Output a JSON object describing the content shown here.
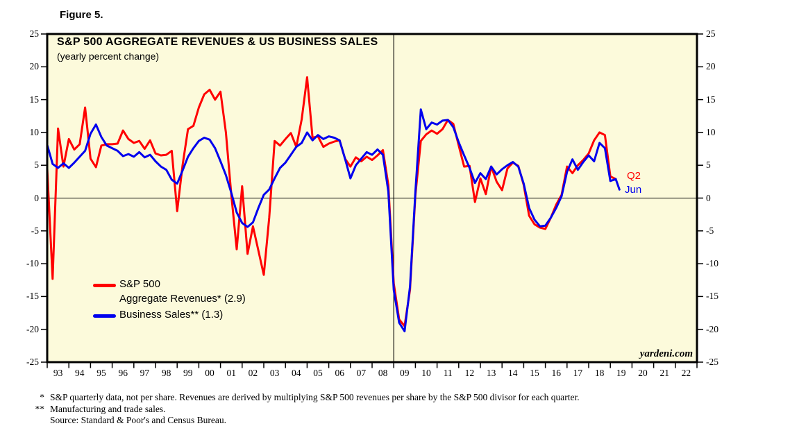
{
  "figure_label": "Figure 5.",
  "watermark": "yardeni.com",
  "footnotes": [
    {
      "marker": "*",
      "text": "S&P quarterly data, not per share. Revenues are derived by multiplying S&P 500 revenues per share by the S&P 500 divisor for each quarter."
    },
    {
      "marker": "**",
      "text": "Manufacturing and trade sales."
    },
    {
      "marker": "",
      "text": "Source: Standard & Poor's and Census Bureau."
    }
  ],
  "chart_data": {
    "type": "line",
    "title": "S&P 500 AGGREGATE REVENUES & US BUSINESS SALES",
    "subtitle": "(yearly percent change)",
    "background_color": "#FCFADB",
    "border_color": "#000000",
    "grid": false,
    "zero_line": true,
    "vertical_reference_line_x": 2009,
    "x_axis": {
      "range": [
        1993,
        2023
      ],
      "tick_labels": [
        "93",
        "94",
        "95",
        "96",
        "97",
        "98",
        "99",
        "00",
        "01",
        "02",
        "03",
        "04",
        "05",
        "06",
        "07",
        "08",
        "09",
        "10",
        "11",
        "12",
        "13",
        "14",
        "15",
        "16",
        "17",
        "18",
        "19",
        "20",
        "21",
        "22"
      ]
    },
    "y_axis": {
      "range": [
        -25,
        25
      ],
      "ticks": [
        25,
        20,
        15,
        10,
        5,
        0,
        -5,
        -10,
        -15,
        -20,
        -25
      ],
      "sides": "both"
    },
    "legend": {
      "position": "inside-lower-left",
      "entries": [
        {
          "color": "#FF0000",
          "label_lines": [
            "S&P 500",
            "Aggregate Revenues* (2.9)"
          ]
        },
        {
          "color": "#0000EE",
          "label_lines": [
            "Business Sales** (1.3)"
          ]
        }
      ]
    },
    "annotations": [
      {
        "text": "Q2",
        "color": "#FF0000",
        "x": 2019.75,
        "y": 3.4
      },
      {
        "text": "Jun",
        "color": "#0000EE",
        "x": 2019.68,
        "y": 1.3
      }
    ],
    "series": [
      {
        "name": "S&P 500 Aggregate Revenues* (2.9)",
        "color": "#FF0000",
        "latest_value": 2.9,
        "latest_label": "Q2",
        "points": [
          [
            1993.0,
            4.5
          ],
          [
            1993.25,
            -12.3
          ],
          [
            1993.5,
            10.6
          ],
          [
            1993.75,
            4.8
          ],
          [
            1994.0,
            9.0
          ],
          [
            1994.25,
            7.4
          ],
          [
            1994.5,
            8.2
          ],
          [
            1994.75,
            13.8
          ],
          [
            1995.0,
            6.0
          ],
          [
            1995.25,
            4.7
          ],
          [
            1995.5,
            8.0
          ],
          [
            1995.75,
            8.2
          ],
          [
            1996.0,
            8.2
          ],
          [
            1996.25,
            8.3
          ],
          [
            1996.5,
            10.3
          ],
          [
            1996.75,
            9.0
          ],
          [
            1997.0,
            8.4
          ],
          [
            1997.25,
            8.7
          ],
          [
            1997.5,
            7.5
          ],
          [
            1997.75,
            8.8
          ],
          [
            1998.0,
            6.8
          ],
          [
            1998.25,
            6.5
          ],
          [
            1998.5,
            6.6
          ],
          [
            1998.75,
            7.2
          ],
          [
            1999.0,
            -2.0
          ],
          [
            1999.25,
            5.0
          ],
          [
            1999.5,
            10.5
          ],
          [
            1999.75,
            11.0
          ],
          [
            2000.0,
            13.8
          ],
          [
            2000.25,
            15.8
          ],
          [
            2000.5,
            16.5
          ],
          [
            2000.75,
            15.0
          ],
          [
            2001.0,
            16.2
          ],
          [
            2001.25,
            10.0
          ],
          [
            2001.5,
            0.5
          ],
          [
            2001.75,
            -7.8
          ],
          [
            2002.0,
            1.8
          ],
          [
            2002.25,
            -8.5
          ],
          [
            2002.5,
            -4.3
          ],
          [
            2002.75,
            -8.0
          ],
          [
            2003.0,
            -11.7
          ],
          [
            2003.25,
            -3.0
          ],
          [
            2003.5,
            8.7
          ],
          [
            2003.75,
            8.0
          ],
          [
            2004.0,
            9.0
          ],
          [
            2004.25,
            9.9
          ],
          [
            2004.5,
            7.8
          ],
          [
            2004.75,
            12.0
          ],
          [
            2005.0,
            18.4
          ],
          [
            2005.25,
            9.2
          ],
          [
            2005.5,
            9.4
          ],
          [
            2005.75,
            7.8
          ],
          [
            2006.0,
            8.3
          ],
          [
            2006.25,
            8.6
          ],
          [
            2006.5,
            8.8
          ],
          [
            2006.75,
            6.0
          ],
          [
            2007.0,
            4.8
          ],
          [
            2007.25,
            6.2
          ],
          [
            2007.5,
            5.6
          ],
          [
            2007.75,
            6.3
          ],
          [
            2008.0,
            5.8
          ],
          [
            2008.25,
            6.5
          ],
          [
            2008.5,
            7.3
          ],
          [
            2008.75,
            2.0
          ],
          [
            2009.0,
            -13.0
          ],
          [
            2009.25,
            -18.5
          ],
          [
            2009.5,
            -19.5
          ],
          [
            2009.75,
            -14.0
          ],
          [
            2010.0,
            0.5
          ],
          [
            2010.25,
            8.7
          ],
          [
            2010.5,
            9.7
          ],
          [
            2010.75,
            10.3
          ],
          [
            2011.0,
            9.8
          ],
          [
            2011.25,
            10.5
          ],
          [
            2011.5,
            11.9
          ],
          [
            2011.75,
            11.3
          ],
          [
            2012.0,
            8.0
          ],
          [
            2012.25,
            4.8
          ],
          [
            2012.5,
            4.9
          ],
          [
            2012.75,
            -0.6
          ],
          [
            2013.0,
            3.0
          ],
          [
            2013.25,
            0.6
          ],
          [
            2013.5,
            4.8
          ],
          [
            2013.75,
            2.5
          ],
          [
            2014.0,
            1.2
          ],
          [
            2014.25,
            4.5
          ],
          [
            2014.5,
            5.4
          ],
          [
            2014.75,
            4.9
          ],
          [
            2015.0,
            2.0
          ],
          [
            2015.25,
            -2.7
          ],
          [
            2015.5,
            -4.0
          ],
          [
            2015.75,
            -4.5
          ],
          [
            2016.0,
            -4.7
          ],
          [
            2016.25,
            -3.0
          ],
          [
            2016.5,
            -1.0
          ],
          [
            2016.75,
            0.5
          ],
          [
            2017.0,
            4.8
          ],
          [
            2017.25,
            3.8
          ],
          [
            2017.5,
            5.0
          ],
          [
            2017.75,
            5.8
          ],
          [
            2018.0,
            6.8
          ],
          [
            2018.25,
            8.8
          ],
          [
            2018.5,
            10.0
          ],
          [
            2018.75,
            9.6
          ],
          [
            2019.0,
            3.3
          ],
          [
            2019.25,
            2.9
          ]
        ]
      },
      {
        "name": "Business Sales** (1.3)",
        "color": "#0000EE",
        "latest_value": 1.3,
        "latest_label": "Jun",
        "points": [
          [
            1993.0,
            8.1
          ],
          [
            1993.25,
            5.2
          ],
          [
            1993.5,
            4.6
          ],
          [
            1993.75,
            5.3
          ],
          [
            1994.0,
            4.6
          ],
          [
            1994.25,
            5.4
          ],
          [
            1994.5,
            6.3
          ],
          [
            1994.75,
            7.2
          ],
          [
            1995.0,
            9.8
          ],
          [
            1995.25,
            11.2
          ],
          [
            1995.5,
            9.3
          ],
          [
            1995.75,
            8.0
          ],
          [
            1996.0,
            7.6
          ],
          [
            1996.25,
            7.2
          ],
          [
            1996.5,
            6.4
          ],
          [
            1996.75,
            6.7
          ],
          [
            1997.0,
            6.3
          ],
          [
            1997.25,
            7.0
          ],
          [
            1997.5,
            6.2
          ],
          [
            1997.75,
            6.6
          ],
          [
            1998.0,
            5.6
          ],
          [
            1998.25,
            4.8
          ],
          [
            1998.5,
            4.3
          ],
          [
            1998.75,
            2.8
          ],
          [
            1999.0,
            2.2
          ],
          [
            1999.25,
            4.2
          ],
          [
            1999.5,
            6.3
          ],
          [
            1999.75,
            7.6
          ],
          [
            2000.0,
            8.7
          ],
          [
            2000.25,
            9.2
          ],
          [
            2000.5,
            8.9
          ],
          [
            2000.75,
            7.6
          ],
          [
            2001.0,
            5.6
          ],
          [
            2001.25,
            3.5
          ],
          [
            2001.5,
            0.8
          ],
          [
            2001.75,
            -2.2
          ],
          [
            2002.0,
            -3.8
          ],
          [
            2002.25,
            -4.4
          ],
          [
            2002.5,
            -3.7
          ],
          [
            2002.75,
            -1.5
          ],
          [
            2003.0,
            0.5
          ],
          [
            2003.25,
            1.3
          ],
          [
            2003.5,
            3.0
          ],
          [
            2003.75,
            4.6
          ],
          [
            2004.0,
            5.4
          ],
          [
            2004.25,
            6.6
          ],
          [
            2004.5,
            7.8
          ],
          [
            2004.75,
            8.4
          ],
          [
            2005.0,
            10.0
          ],
          [
            2005.25,
            8.8
          ],
          [
            2005.5,
            9.6
          ],
          [
            2005.75,
            9.0
          ],
          [
            2006.0,
            9.4
          ],
          [
            2006.25,
            9.2
          ],
          [
            2006.5,
            8.8
          ],
          [
            2006.75,
            6.0
          ],
          [
            2007.0,
            3.0
          ],
          [
            2007.25,
            5.0
          ],
          [
            2007.5,
            6.0
          ],
          [
            2007.75,
            7.0
          ],
          [
            2008.0,
            6.6
          ],
          [
            2008.25,
            7.4
          ],
          [
            2008.5,
            6.6
          ],
          [
            2008.75,
            1.0
          ],
          [
            2009.0,
            -14.0
          ],
          [
            2009.25,
            -19.0
          ],
          [
            2009.5,
            -20.3
          ],
          [
            2009.75,
            -13.5
          ],
          [
            2010.0,
            1.0
          ],
          [
            2010.25,
            13.5
          ],
          [
            2010.5,
            10.5
          ],
          [
            2010.75,
            11.5
          ],
          [
            2011.0,
            11.2
          ],
          [
            2011.25,
            11.8
          ],
          [
            2011.5,
            11.9
          ],
          [
            2011.75,
            10.8
          ],
          [
            2012.0,
            8.5
          ],
          [
            2012.25,
            6.5
          ],
          [
            2012.5,
            4.6
          ],
          [
            2012.75,
            2.3
          ],
          [
            2013.0,
            3.8
          ],
          [
            2013.25,
            2.9
          ],
          [
            2013.5,
            4.8
          ],
          [
            2013.75,
            3.6
          ],
          [
            2014.0,
            4.4
          ],
          [
            2014.25,
            5.0
          ],
          [
            2014.5,
            5.5
          ],
          [
            2014.75,
            4.8
          ],
          [
            2015.0,
            2.2
          ],
          [
            2015.25,
            -1.5
          ],
          [
            2015.5,
            -3.3
          ],
          [
            2015.75,
            -4.3
          ],
          [
            2016.0,
            -4.2
          ],
          [
            2016.25,
            -3.0
          ],
          [
            2016.5,
            -1.5
          ],
          [
            2016.75,
            0.3
          ],
          [
            2017.0,
            4.0
          ],
          [
            2017.25,
            5.9
          ],
          [
            2017.5,
            4.3
          ],
          [
            2017.75,
            5.5
          ],
          [
            2018.0,
            6.5
          ],
          [
            2018.25,
            5.6
          ],
          [
            2018.5,
            8.4
          ],
          [
            2018.75,
            7.6
          ],
          [
            2019.0,
            2.6
          ],
          [
            2019.25,
            2.9
          ],
          [
            2019.42,
            1.3
          ]
        ]
      }
    ]
  }
}
